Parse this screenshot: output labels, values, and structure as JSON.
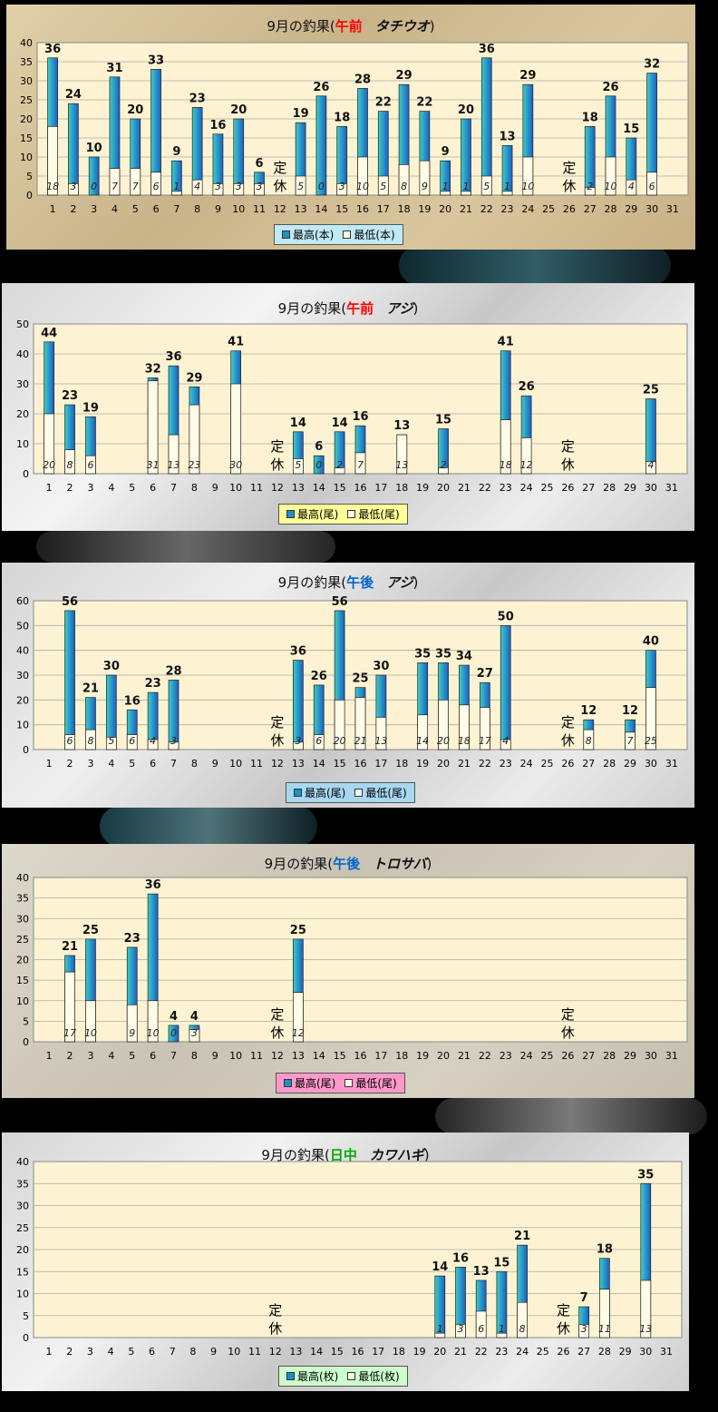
{
  "charts": [
    {
      "title_prefix": "9月の釣果(",
      "session": "午前",
      "fish": "タチウオ",
      "title_suffix": ")",
      "session_color": "#ff0000",
      "legend": [
        "最高(本)",
        "最低(本)"
      ],
      "legend_bg": "#bfeaf5",
      "closed_label": [
        "定",
        "休"
      ]
    },
    {
      "title_prefix": "9月の釣果(",
      "session": "午前",
      "fish": "アジ",
      "title_suffix": ")",
      "session_color": "#ff0000",
      "legend": [
        "最高(尾)",
        "最低(尾)"
      ],
      "legend_bg": "#ffff99",
      "closed_label": [
        "定",
        "休"
      ]
    },
    {
      "title_prefix": "9月の釣果(",
      "session": "午後",
      "fish": "アジ",
      "title_suffix": ")",
      "session_color": "#0066cc",
      "legend": [
        "最高(尾)",
        "最低(尾)"
      ],
      "legend_bg": "#a8d8f0",
      "closed_label": [
        "定",
        "休"
      ]
    },
    {
      "title_prefix": "9月の釣果(",
      "session": "午後",
      "fish": "トロサバ",
      "title_suffix": ")",
      "session_color": "#0066cc",
      "legend": [
        "最高(尾)",
        "最低(尾)"
      ],
      "legend_bg": "#ff99cc",
      "closed_label": [
        "定",
        "休"
      ]
    },
    {
      "title_prefix": "9月の釣果(",
      "session": "日中",
      "fish": "カワハギ",
      "title_suffix": ")",
      "session_color": "#00aa00",
      "legend": [
        "最高(枚)",
        "最低(枚)"
      ],
      "legend_bg": "#ccffcc",
      "closed_label": [
        "定",
        "休"
      ]
    }
  ],
  "chart_data": [
    {
      "type": "bar",
      "categories": [
        "1",
        "2",
        "3",
        "4",
        "5",
        "6",
        "7",
        "8",
        "9",
        "10",
        "11",
        "12",
        "13",
        "14",
        "15",
        "16",
        "17",
        "18",
        "19",
        "20",
        "21",
        "22",
        "23",
        "24",
        "25",
        "26",
        "27",
        "28",
        "29",
        "30",
        "31"
      ],
      "ylim": [
        0,
        40
      ],
      "yticks": [
        0,
        5,
        10,
        15,
        20,
        25,
        30,
        35,
        40
      ],
      "series": [
        {
          "name": "最高(本)",
          "values": [
            36,
            24,
            10,
            31,
            20,
            33,
            9,
            23,
            16,
            20,
            6,
            null,
            19,
            26,
            18,
            28,
            22,
            29,
            22,
            9,
            20,
            36,
            13,
            29,
            null,
            null,
            18,
            26,
            15,
            32,
            null
          ]
        },
        {
          "name": "最低(本)",
          "values": [
            18,
            3,
            0,
            7,
            7,
            6,
            1,
            4,
            3,
            3,
            3,
            null,
            5,
            0,
            3,
            10,
            5,
            8,
            9,
            1,
            1,
            5,
            1,
            10,
            null,
            null,
            2,
            10,
            4,
            6,
            null
          ]
        }
      ],
      "closed_days": [
        12,
        26
      ],
      "grid": true
    },
    {
      "type": "bar",
      "categories": [
        "1",
        "2",
        "3",
        "4",
        "5",
        "6",
        "7",
        "8",
        "9",
        "10",
        "11",
        "12",
        "13",
        "14",
        "15",
        "16",
        "17",
        "18",
        "19",
        "20",
        "21",
        "22",
        "23",
        "24",
        "25",
        "26",
        "27",
        "28",
        "29",
        "30",
        "31"
      ],
      "ylim": [
        0,
        50
      ],
      "yticks": [
        0,
        10,
        20,
        30,
        40,
        50
      ],
      "series": [
        {
          "name": "最高(尾)",
          "values": [
            44,
            23,
            19,
            null,
            null,
            32,
            36,
            29,
            null,
            41,
            null,
            null,
            14,
            6,
            14,
            16,
            null,
            13,
            null,
            15,
            null,
            null,
            41,
            26,
            null,
            null,
            null,
            null,
            null,
            25,
            null
          ]
        },
        {
          "name": "最低(尾)",
          "values": [
            20,
            8,
            6,
            null,
            null,
            31,
            13,
            23,
            null,
            30,
            null,
            null,
            5,
            0,
            2,
            7,
            null,
            13,
            null,
            2,
            null,
            null,
            18,
            12,
            null,
            null,
            null,
            null,
            null,
            4,
            null
          ]
        }
      ],
      "closed_days": [
        12,
        26
      ],
      "grid": true
    },
    {
      "type": "bar",
      "categories": [
        "1",
        "2",
        "3",
        "4",
        "5",
        "6",
        "7",
        "8",
        "9",
        "10",
        "11",
        "12",
        "13",
        "14",
        "15",
        "16",
        "17",
        "18",
        "19",
        "20",
        "21",
        "22",
        "23",
        "24",
        "25",
        "26",
        "27",
        "28",
        "29",
        "30",
        "31"
      ],
      "ylim": [
        0,
        60
      ],
      "yticks": [
        0,
        10,
        20,
        30,
        40,
        50,
        60
      ],
      "series": [
        {
          "name": "最高(尾)",
          "values": [
            null,
            56,
            21,
            30,
            16,
            23,
            28,
            null,
            null,
            null,
            null,
            null,
            36,
            26,
            56,
            25,
            30,
            null,
            35,
            35,
            34,
            27,
            50,
            null,
            null,
            null,
            12,
            null,
            12,
            40,
            null
          ]
        },
        {
          "name": "最低(尾)",
          "values": [
            null,
            6,
            8,
            5,
            6,
            4,
            3,
            null,
            null,
            null,
            null,
            null,
            3,
            6,
            20,
            21,
            13,
            null,
            14,
            20,
            18,
            17,
            4,
            null,
            null,
            null,
            8,
            null,
            7,
            25,
            null
          ]
        }
      ],
      "closed_days": [
        12,
        26
      ],
      "grid": true
    },
    {
      "type": "bar",
      "categories": [
        "1",
        "2",
        "3",
        "4",
        "5",
        "6",
        "7",
        "8",
        "9",
        "10",
        "11",
        "12",
        "13",
        "14",
        "15",
        "16",
        "17",
        "18",
        "19",
        "20",
        "21",
        "22",
        "23",
        "24",
        "25",
        "26",
        "27",
        "28",
        "29",
        "30",
        "31"
      ],
      "ylim": [
        0,
        40
      ],
      "yticks": [
        0,
        5,
        10,
        15,
        20,
        25,
        30,
        35,
        40
      ],
      "series": [
        {
          "name": "最高(尾)",
          "values": [
            null,
            21,
            25,
            null,
            23,
            36,
            4,
            4,
            null,
            null,
            null,
            null,
            25,
            null,
            null,
            null,
            null,
            null,
            null,
            null,
            null,
            null,
            null,
            null,
            null,
            null,
            null,
            null,
            null,
            null,
            null
          ]
        },
        {
          "name": "最低(尾)",
          "values": [
            null,
            17,
            10,
            null,
            9,
            10,
            0,
            3,
            null,
            null,
            null,
            null,
            12,
            null,
            null,
            null,
            null,
            null,
            null,
            null,
            null,
            null,
            null,
            null,
            null,
            null,
            null,
            null,
            null,
            null,
            null
          ]
        }
      ],
      "closed_days": [
        12,
        26
      ],
      "grid": true
    },
    {
      "type": "bar",
      "categories": [
        "1",
        "2",
        "3",
        "4",
        "5",
        "6",
        "7",
        "8",
        "9",
        "10",
        "11",
        "12",
        "13",
        "14",
        "15",
        "16",
        "17",
        "18",
        "19",
        "20",
        "21",
        "22",
        "23",
        "24",
        "25",
        "26",
        "27",
        "28",
        "29",
        "30",
        "31"
      ],
      "ylim": [
        0,
        40
      ],
      "yticks": [
        0,
        5,
        10,
        15,
        20,
        25,
        30,
        35,
        40
      ],
      "series": [
        {
          "name": "最高(枚)",
          "values": [
            null,
            null,
            null,
            null,
            null,
            null,
            null,
            null,
            null,
            null,
            null,
            null,
            null,
            null,
            null,
            null,
            null,
            null,
            null,
            14,
            16,
            13,
            15,
            21,
            null,
            null,
            7,
            18,
            null,
            35,
            null
          ]
        },
        {
          "name": "最低(枚)",
          "values": [
            null,
            null,
            null,
            null,
            null,
            null,
            null,
            null,
            null,
            null,
            null,
            null,
            null,
            null,
            null,
            null,
            null,
            null,
            null,
            1,
            3,
            6,
            1,
            8,
            null,
            null,
            3,
            11,
            null,
            13,
            null
          ]
        }
      ],
      "closed_days": [
        12,
        26
      ],
      "grid": true
    }
  ]
}
